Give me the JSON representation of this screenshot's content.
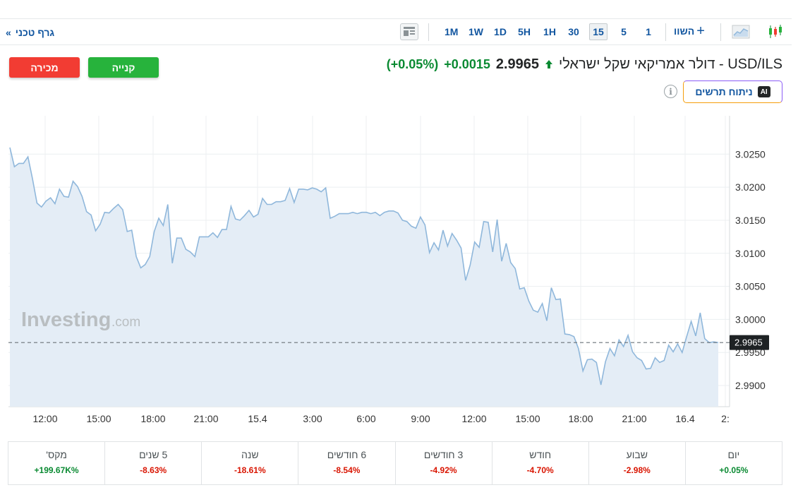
{
  "toolbar": {
    "technical_chart_link": "גרף טכני",
    "compare_label": "השוו",
    "timeframes": [
      "1M",
      "1W",
      "1D",
      "5H",
      "1H",
      "30",
      "15",
      "5",
      "1"
    ],
    "active_timeframe": "15",
    "icons": [
      "layout-icon",
      "plus-icon",
      "area-chart-icon",
      "candlestick-icon",
      "chevron-right-icon"
    ]
  },
  "actions": {
    "sell_label": "מכירה",
    "buy_label": "קנייה"
  },
  "quote": {
    "name": "USD/ILS - דולר אמריקאי שקל ישראלי",
    "price": "2.9965",
    "change": "+0.0015",
    "change_pct": "(+0.05%)",
    "direction_icon": "up-arrow-icon"
  },
  "ai_analysis": {
    "badge": "AI",
    "label": "ניתוח תרשים"
  },
  "colors": {
    "accent": "#1256a0",
    "positive": "#0a8a32",
    "negative": "#d91400",
    "series_line": "#8fb7db",
    "series_fill": "#e4edf6",
    "buy": "#27b33c",
    "sell": "#f23c33"
  },
  "watermark": {
    "brand": "Investing",
    "suffix": ".com"
  },
  "chart_data": {
    "type": "area",
    "title": "",
    "xlabel": "",
    "ylabel": "",
    "current_value": 2.9965,
    "current_value_label": "2.9965",
    "ylim": [
      2.9868,
      3.0308
    ],
    "y_ticks": [
      "3.0250",
      "3.0200",
      "3.0150",
      "3.0100",
      "3.0050",
      "3.0000",
      "2.9950",
      "2.9900"
    ],
    "y_tick_values": [
      3.025,
      3.02,
      3.015,
      3.01,
      3.005,
      3.0,
      2.995,
      2.99
    ],
    "x_ticks": [
      "12:00",
      "15:00",
      "18:00",
      "21:00",
      "15.4",
      "3:00",
      "6:00",
      "9:00",
      "12:00",
      "15:00",
      "18:00",
      "21:00",
      "16.4",
      "2:"
    ],
    "grid": true,
    "legend": "none",
    "series": [
      {
        "values": [
          3.026,
          3.0231,
          3.0236,
          3.0236,
          3.0246,
          3.0213,
          3.0176,
          3.017,
          3.0179,
          3.0184,
          3.0175,
          3.0197,
          3.0186,
          3.0185,
          3.0209,
          3.0201,
          3.0186,
          3.0163,
          3.0158,
          3.0134,
          3.0144,
          3.0162,
          3.0161,
          3.0168,
          3.0174,
          3.0166,
          3.0133,
          3.0135,
          3.0095,
          3.0078,
          3.0083,
          3.0095,
          3.0133,
          3.0153,
          3.0142,
          3.0174,
          3.0085,
          3.0123,
          3.0123,
          3.0106,
          3.0102,
          3.0095,
          3.0125,
          3.0125,
          3.0125,
          3.0131,
          3.0124,
          3.0136,
          3.0136,
          3.0171,
          3.0152,
          3.015,
          3.0157,
          3.0165,
          3.0155,
          3.0159,
          3.0183,
          3.0174,
          3.0174,
          3.0178,
          3.0178,
          3.018,
          3.0198,
          3.0177,
          3.0197,
          3.0197,
          3.0196,
          3.0199,
          3.0197,
          3.0193,
          3.0199,
          3.0153,
          3.0156,
          3.016,
          3.016,
          3.016,
          3.0162,
          3.016,
          3.0162,
          3.0162,
          3.016,
          3.0162,
          3.0157,
          3.0162,
          3.0164,
          3.0164,
          3.0161,
          3.015,
          3.0148,
          3.0141,
          3.0138,
          3.0155,
          3.0143,
          3.0101,
          3.0116,
          3.0105,
          3.0135,
          3.0111,
          3.013,
          3.012,
          3.0108,
          3.0059,
          3.0082,
          3.0117,
          3.0109,
          3.0148,
          3.0147,
          3.0102,
          3.0151,
          3.0088,
          3.0115,
          3.0086,
          3.0077,
          3.0046,
          3.0048,
          3.0028,
          3.0014,
          3.0011,
          3.0024,
          2.9998,
          3.0048,
          3.003,
          3.0031,
          2.9978,
          2.9977,
          2.9974,
          2.9956,
          2.9922,
          2.9939,
          2.994,
          2.9935,
          2.9901,
          2.9936,
          2.9956,
          2.9945,
          2.9969,
          2.9959,
          2.9976,
          2.9951,
          2.9942,
          2.9938,
          2.9925,
          2.9926,
          2.9942,
          2.9935,
          2.9938,
          2.9961,
          2.9951,
          2.9963,
          2.995,
          2.9974,
          2.9997,
          2.9975,
          3.001,
          2.9971,
          2.9965,
          2.9966,
          2.9965
        ]
      }
    ]
  },
  "performance": [
    {
      "label": "יום",
      "value": "+0.05%",
      "sign": "pos"
    },
    {
      "label": "שבוע",
      "value": "-2.98%",
      "sign": "neg"
    },
    {
      "label": "חודש",
      "value": "-4.70%",
      "sign": "neg"
    },
    {
      "label": "3 חודשים",
      "value": "-4.92%",
      "sign": "neg"
    },
    {
      "label": "6 חודשים",
      "value": "-8.54%",
      "sign": "neg"
    },
    {
      "label": "שנה",
      "value": "-18.61%",
      "sign": "neg"
    },
    {
      "label": "5 שנים",
      "value": "-8.63%",
      "sign": "neg"
    },
    {
      "label": "מקס'",
      "value": "+199.67K%",
      "sign": "pos"
    }
  ]
}
